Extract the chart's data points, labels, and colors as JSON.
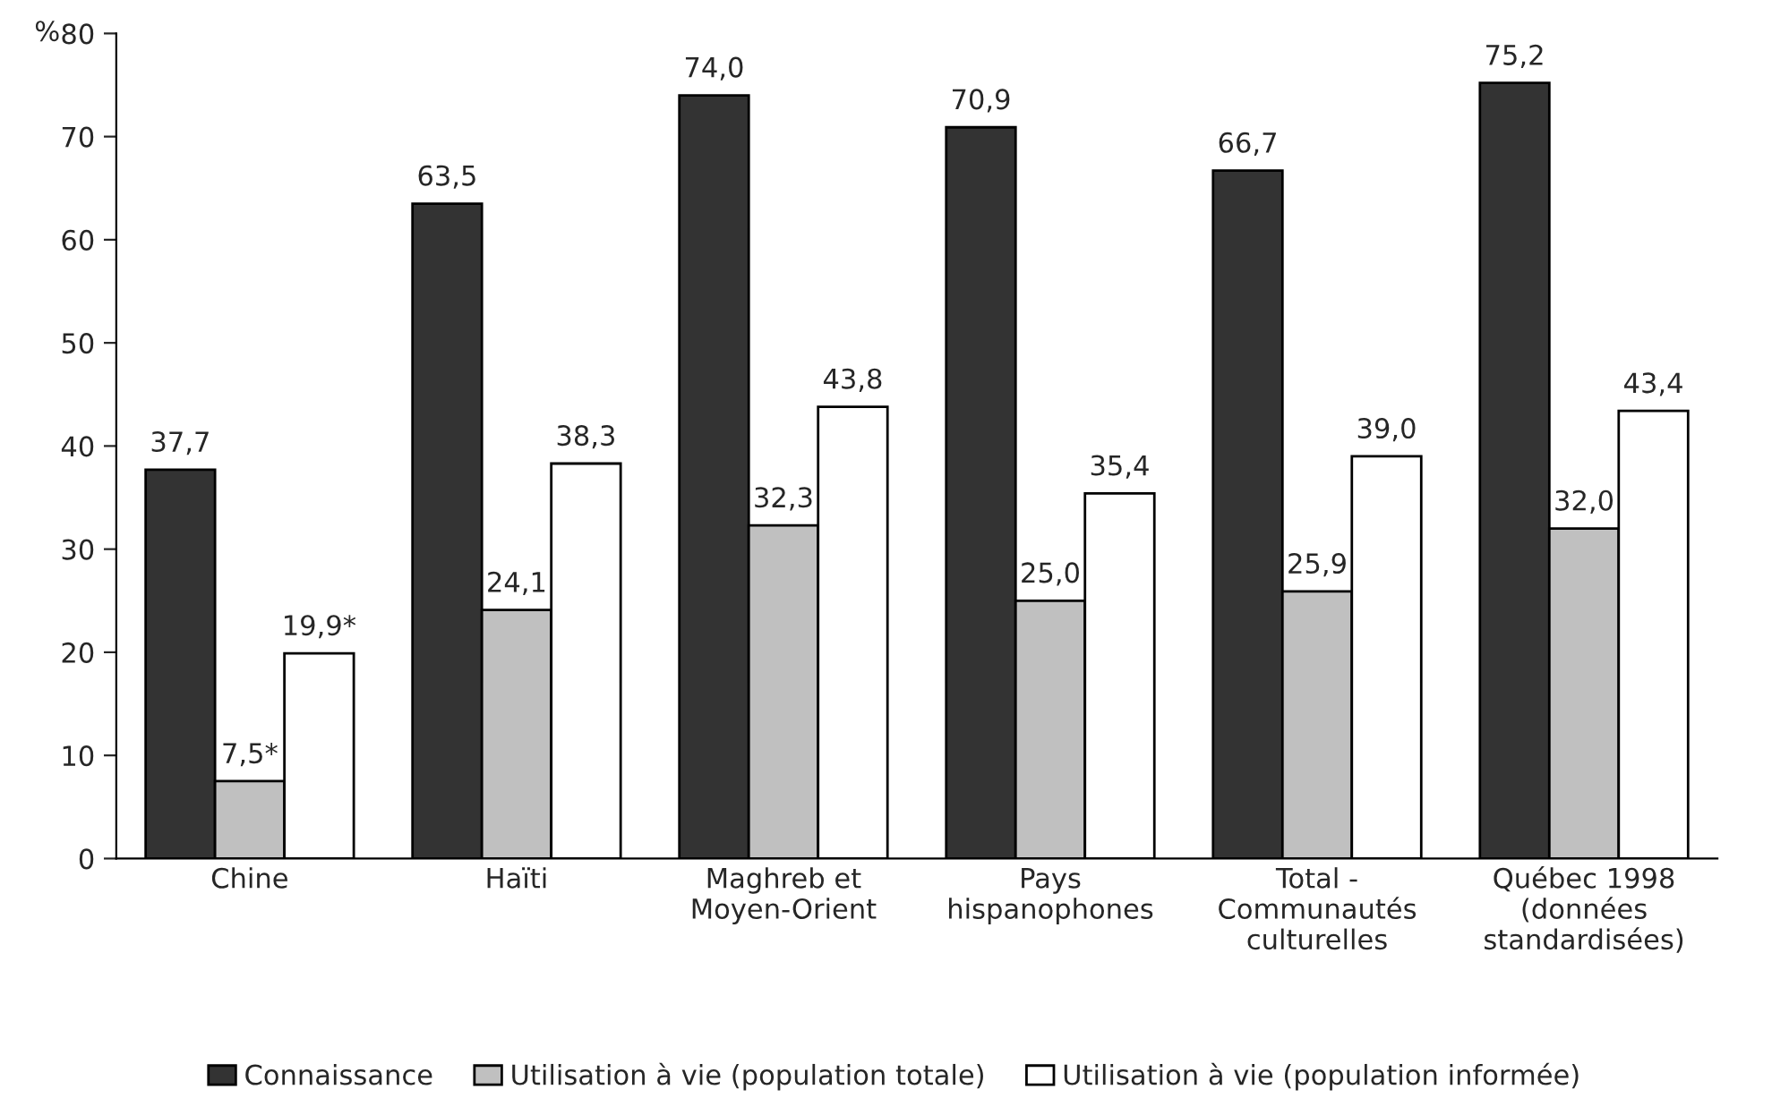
{
  "chart_data": {
    "type": "bar",
    "ylabel": "%",
    "categories": [
      "Chine",
      "Haïti",
      "Maghreb et\nMoyen-Orient",
      "Pays\nhispanophones",
      "Total -\nCommunautés\nculturelles",
      "Québec 1998\n(données\nstandardisées)"
    ],
    "series": [
      {
        "name": "Connaissance",
        "color": "#333333",
        "values": [
          37.7,
          63.5,
          74.0,
          70.9,
          66.7,
          75.2
        ],
        "value_labels": [
          "37,7",
          "63,5",
          "74,0",
          "70,9",
          "66,7",
          "75,2"
        ]
      },
      {
        "name": "Utilisation à vie (population totale)",
        "color": "#c0c0c0",
        "values": [
          7.5,
          24.1,
          32.3,
          25.0,
          25.9,
          32.0
        ],
        "value_labels": [
          "7,5*",
          "24,1",
          "32,3",
          "25,0",
          "25,9",
          "32,0"
        ]
      },
      {
        "name": "Utilisation à vie (population informée)",
        "color": "#ffffff",
        "values": [
          19.9,
          38.3,
          43.8,
          35.4,
          39.0,
          43.4
        ],
        "value_labels": [
          "19,9*",
          "38,3",
          "43,8",
          "35,4",
          "39,0",
          "43,4"
        ]
      }
    ],
    "ylim": [
      0,
      80
    ],
    "yticks": [
      0,
      10,
      20,
      30,
      40,
      50,
      60,
      70,
      80
    ],
    "grid": false,
    "legend": "bottom"
  }
}
